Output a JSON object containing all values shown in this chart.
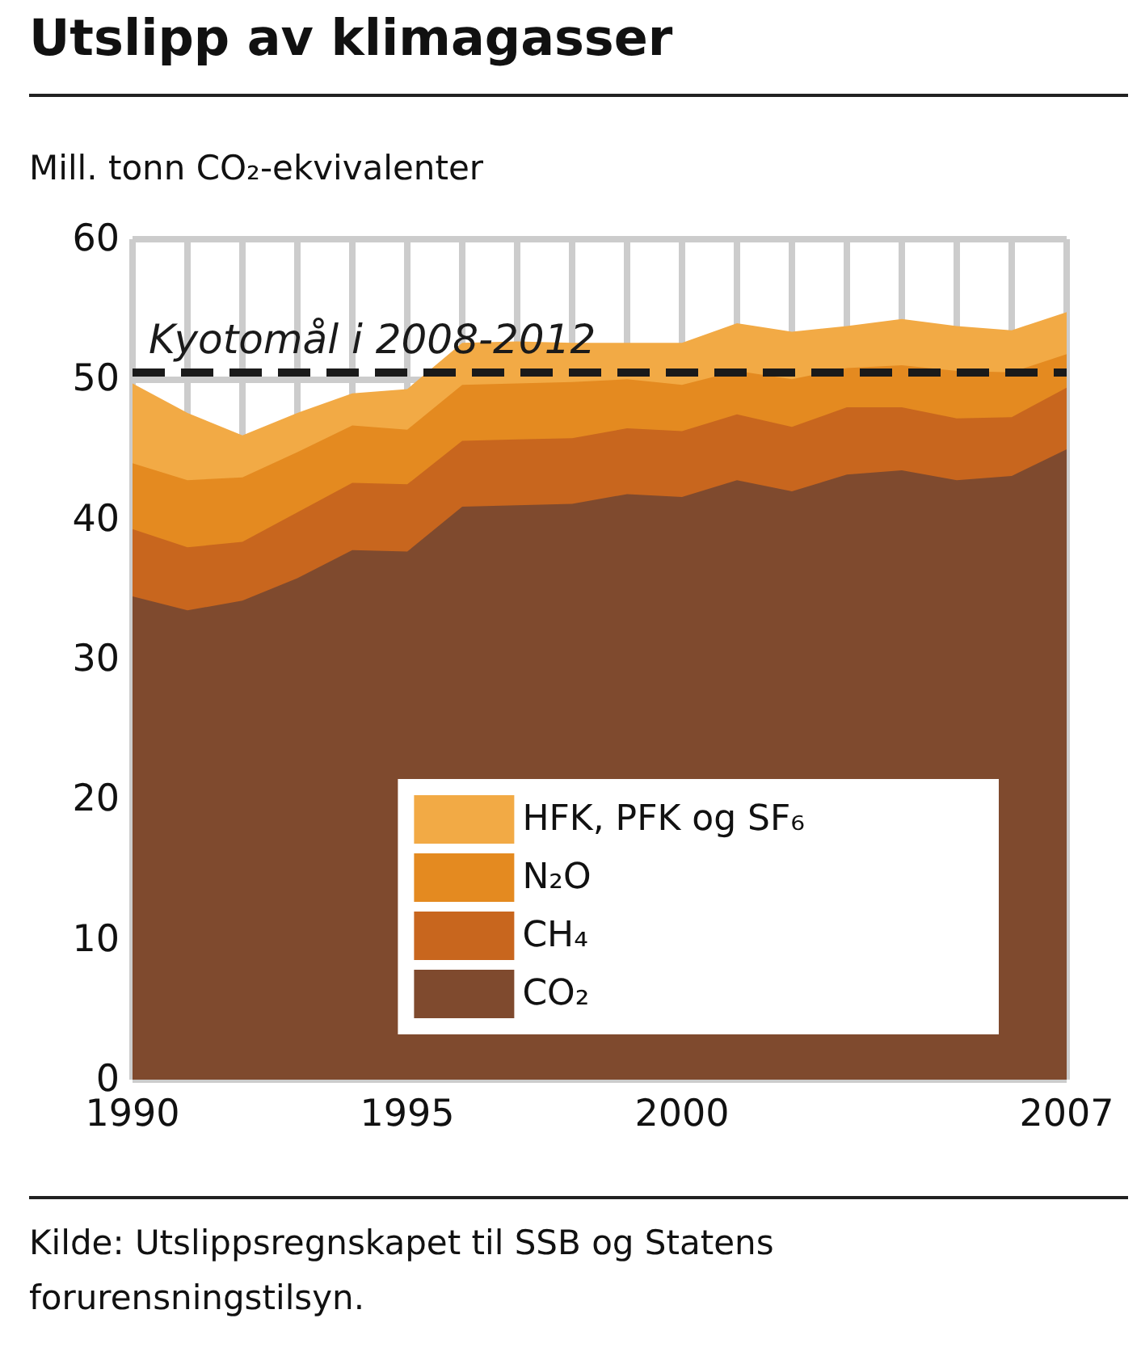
{
  "chart_data": {
    "type": "area",
    "title": "Utslipp av klimagasser",
    "ylabel": "Mill. tonn CO₂-ekvivalenter",
    "x": [
      1990,
      1991,
      1992,
      1993,
      1994,
      1995,
      1996,
      1997,
      1998,
      1999,
      2000,
      2001,
      2002,
      2003,
      2004,
      2005,
      2006,
      2007
    ],
    "stacked": true,
    "series": [
      {
        "name": "CO₂",
        "color": "#7f4a2e",
        "values": [
          34.5,
          33.5,
          34.2,
          35.8,
          37.8,
          37.7,
          40.9,
          41.0,
          41.1,
          41.8,
          41.6,
          42.8,
          42.0,
          43.2,
          43.5,
          42.8,
          43.1,
          45.0
        ]
      },
      {
        "name": "CH₄",
        "color": "#c8661e",
        "values": [
          4.8,
          4.5,
          4.2,
          4.7,
          4.8,
          4.8,
          4.7,
          4.7,
          4.7,
          4.7,
          4.7,
          4.7,
          4.6,
          4.8,
          4.5,
          4.4,
          4.2,
          4.4
        ]
      },
      {
        "name": "N₂O",
        "color": "#e48a20",
        "values": [
          4.7,
          4.8,
          4.6,
          4.3,
          4.1,
          3.9,
          4.0,
          4.0,
          4.0,
          3.5,
          3.3,
          3.1,
          3.4,
          2.8,
          3.0,
          3.4,
          3.2,
          2.4
        ]
      },
      {
        "name": "HFK, PFK og SF₆",
        "color": "#f2aa45",
        "values": [
          5.7,
          4.8,
          3.0,
          2.8,
          2.3,
          2.9,
          3.0,
          3.0,
          2.8,
          2.6,
          3.0,
          3.4,
          3.4,
          3.0,
          3.3,
          3.2,
          3.0,
          3.0
        ]
      }
    ],
    "xlim": [
      1990,
      2007
    ],
    "xticks": [
      1990,
      {
        "value": 1991,
        "label": null
      },
      {
        "value": 1992,
        "label": null
      },
      {
        "value": 1993,
        "label": null
      },
      {
        "value": 1994,
        "label": null
      },
      1995,
      {
        "value": 1996,
        "label": null
      },
      {
        "value": 1997,
        "label": null
      },
      {
        "value": 1998,
        "label": null
      },
      {
        "value": 1999,
        "label": null
      },
      2000,
      {
        "value": 2001,
        "label": null
      },
      {
        "value": 2002,
        "label": null
      },
      {
        "value": 2003,
        "label": null
      },
      {
        "value": 2004,
        "label": null
      },
      {
        "value": 2005,
        "label": null
      },
      {
        "value": 2006,
        "label": null
      },
      2007
    ],
    "ylim": [
      0,
      60
    ],
    "yticks": [
      0,
      10,
      20,
      30,
      40,
      50,
      60
    ],
    "ref_lines": [
      {
        "axis": "y",
        "value": 50.5,
        "label": "Kyotomål i 2008-2012",
        "color": "#1a1a1a",
        "line_style": "dashed"
      }
    ],
    "annotations": [
      "Kilde: Utslippsregnskapet til SSB og Statens forurensningstilsyn."
    ],
    "grid": true,
    "legend": "bottom right",
    "marker": "none"
  }
}
